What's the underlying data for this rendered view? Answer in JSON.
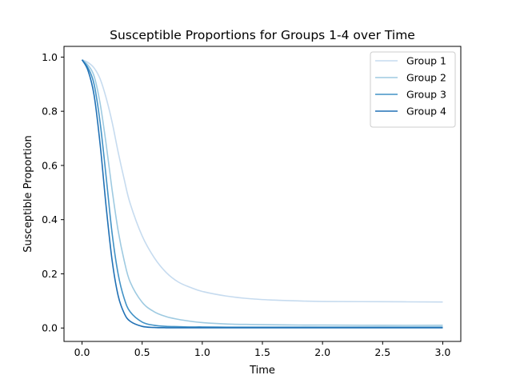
{
  "chart_data": {
    "type": "line",
    "title": "Susceptible Proportions for Groups 1-4 over Time",
    "xlabel": "Time",
    "ylabel": "Susceptible Proportion",
    "xlim": [
      -0.15,
      3.15
    ],
    "ylim": [
      -0.0495,
      1.0395
    ],
    "xticks": [
      0.0,
      0.5,
      1.0,
      1.5,
      2.0,
      2.5,
      3.0
    ],
    "xtick_labels": [
      "0.0",
      "0.5",
      "1.0",
      "1.5",
      "2.0",
      "2.5",
      "3.0"
    ],
    "yticks": [
      0.0,
      0.2,
      0.4,
      0.6,
      0.8,
      1.0
    ],
    "ytick_labels": [
      "0.0",
      "0.2",
      "0.4",
      "0.6",
      "0.8",
      "1.0"
    ],
    "grid": false,
    "legend_position": "top-right",
    "x": [
      0.0,
      0.05,
      0.1,
      0.15,
      0.2,
      0.25,
      0.3,
      0.35,
      0.4,
      0.5,
      0.6,
      0.7,
      0.8,
      0.9,
      1.0,
      1.2,
      1.4,
      1.6,
      1.8,
      2.0,
      2.5,
      3.0
    ],
    "series": [
      {
        "name": "Group 1",
        "color": "#c6dbef",
        "values": [
          0.99,
          0.98,
          0.96,
          0.92,
          0.85,
          0.76,
          0.65,
          0.55,
          0.46,
          0.34,
          0.26,
          0.205,
          0.17,
          0.15,
          0.135,
          0.118,
          0.108,
          0.103,
          0.1,
          0.098,
          0.097,
          0.096
        ]
      },
      {
        "name": "Group 2",
        "color": "#9ecae1",
        "values": [
          0.99,
          0.97,
          0.93,
          0.83,
          0.68,
          0.51,
          0.36,
          0.25,
          0.17,
          0.095,
          0.06,
          0.042,
          0.032,
          0.025,
          0.02,
          0.015,
          0.013,
          0.012,
          0.011,
          0.011,
          0.01,
          0.01
        ]
      },
      {
        "name": "Group 3",
        "color": "#4292c6",
        "values": [
          0.99,
          0.96,
          0.9,
          0.76,
          0.56,
          0.35,
          0.2,
          0.11,
          0.06,
          0.022,
          0.01,
          0.006,
          0.005,
          0.004,
          0.004,
          0.003,
          0.003,
          0.003,
          0.003,
          0.003,
          0.003,
          0.003
        ]
      },
      {
        "name": "Group 4",
        "color": "#2171b5",
        "values": [
          0.99,
          0.95,
          0.86,
          0.68,
          0.45,
          0.25,
          0.12,
          0.055,
          0.025,
          0.006,
          0.002,
          0.001,
          0.001,
          0.001,
          0.001,
          0.001,
          0.001,
          0.001,
          0.001,
          0.001,
          0.001,
          0.001
        ]
      }
    ]
  }
}
